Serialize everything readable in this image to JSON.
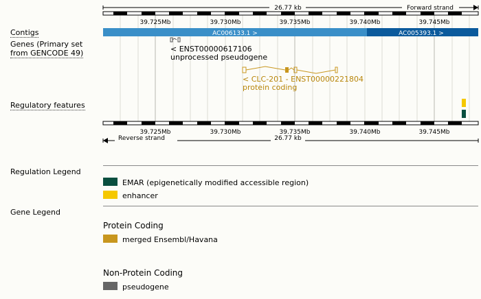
{
  "ruler_top": {
    "span_label": "26.77 kb",
    "strand_label": "Forward strand",
    "ticks": [
      "39.725Mb",
      "39.730Mb",
      "39.735Mb",
      "39.740Mb",
      "39.745Mb"
    ]
  },
  "ruler_bottom": {
    "span_label": "26.77 kb",
    "strand_label": "Reverse strand",
    "ticks": [
      "39.725Mb",
      "39.730Mb",
      "39.735Mb",
      "39.740Mb",
      "39.745Mb"
    ]
  },
  "tracks": {
    "contigs_label": "Contigs",
    "genes_label_line1": "Genes (Primary set",
    "genes_label_line2": "from GENCODE 49)",
    "regulatory_label": "Regulatory features"
  },
  "contigs": [
    {
      "label": "AC006133.1 >",
      "color": "#3a8fc8"
    },
    {
      "label": "AC005393.1 >",
      "color": "#0b5a9c"
    }
  ],
  "genes": [
    {
      "line1": "< ENST00000617106",
      "line2": "unprocessed pseudogene",
      "color": "#000000"
    },
    {
      "line1": "< CLC-201 - ENST00000221804",
      "line2": "protein coding",
      "color": "#b8860b"
    }
  ],
  "regulation_legend": {
    "title": "Regulation Legend",
    "items": [
      {
        "label": "EMAR (epigenetically modified accessible region)",
        "color": "#0a4f3f"
      },
      {
        "label": "enhancer",
        "color": "#f5c800"
      }
    ]
  },
  "gene_legend": {
    "title": "Gene Legend",
    "groups": [
      {
        "heading": "Protein Coding",
        "items": [
          {
            "label": "merged Ensembl/Havana",
            "color": "#c8961e"
          }
        ]
      },
      {
        "heading": "Non-Protein Coding",
        "items": [
          {
            "label": "pseudogene",
            "color": "#666666"
          }
        ]
      }
    ]
  }
}
